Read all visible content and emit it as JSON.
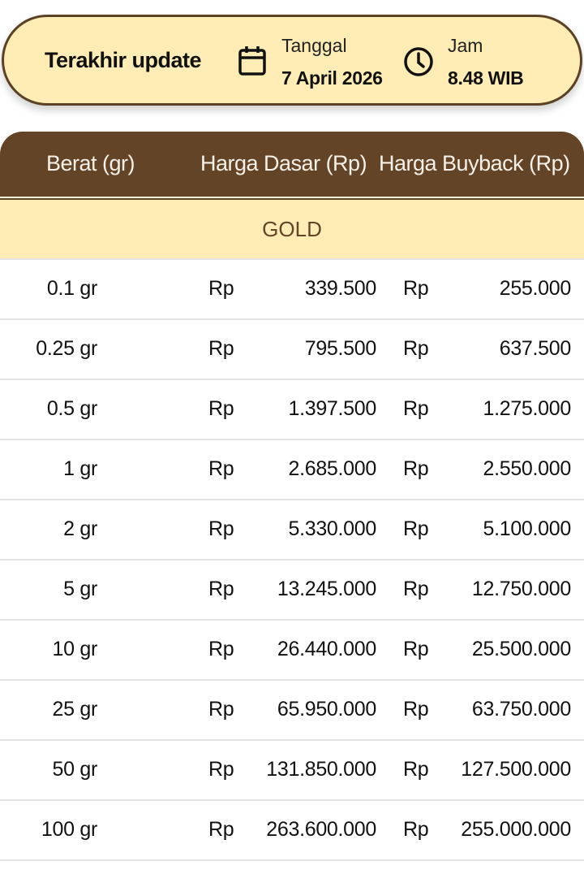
{
  "update": {
    "title": "Terakhir update",
    "date_label": "Tanggal",
    "date_value": "7 April 2026",
    "time_label": "Jam",
    "time_value": "8.48 WIB",
    "date_icon": "calendar-icon",
    "time_icon": "clock-icon"
  },
  "colors": {
    "brand_brown": "#644426",
    "cream": "#FFEDB5"
  },
  "table": {
    "headers": [
      "Berat (gr)",
      "Harga Dasar (Rp)",
      "Harga Buyback (Rp)"
    ],
    "group": "GOLD",
    "currency": "Rp",
    "rows": [
      {
        "weight": "0.1 gr",
        "base": "339.500",
        "buyback": "255.000"
      },
      {
        "weight": "0.25 gr",
        "base": "795.500",
        "buyback": "637.500"
      },
      {
        "weight": "0.5 gr",
        "base": "1.397.500",
        "buyback": "1.275.000"
      },
      {
        "weight": "1 gr",
        "base": "2.685.000",
        "buyback": "2.550.000"
      },
      {
        "weight": "2 gr",
        "base": "5.330.000",
        "buyback": "5.100.000"
      },
      {
        "weight": "5 gr",
        "base": "13.245.000",
        "buyback": "12.750.000"
      },
      {
        "weight": "10 gr",
        "base": "26.440.000",
        "buyback": "25.500.000"
      },
      {
        "weight": "25 gr",
        "base": "65.950.000",
        "buyback": "63.750.000"
      },
      {
        "weight": "50 gr",
        "base": "131.850.000",
        "buyback": "127.500.000"
      },
      {
        "weight": "100 gr",
        "base": "263.600.000",
        "buyback": "255.000.000"
      }
    ]
  }
}
